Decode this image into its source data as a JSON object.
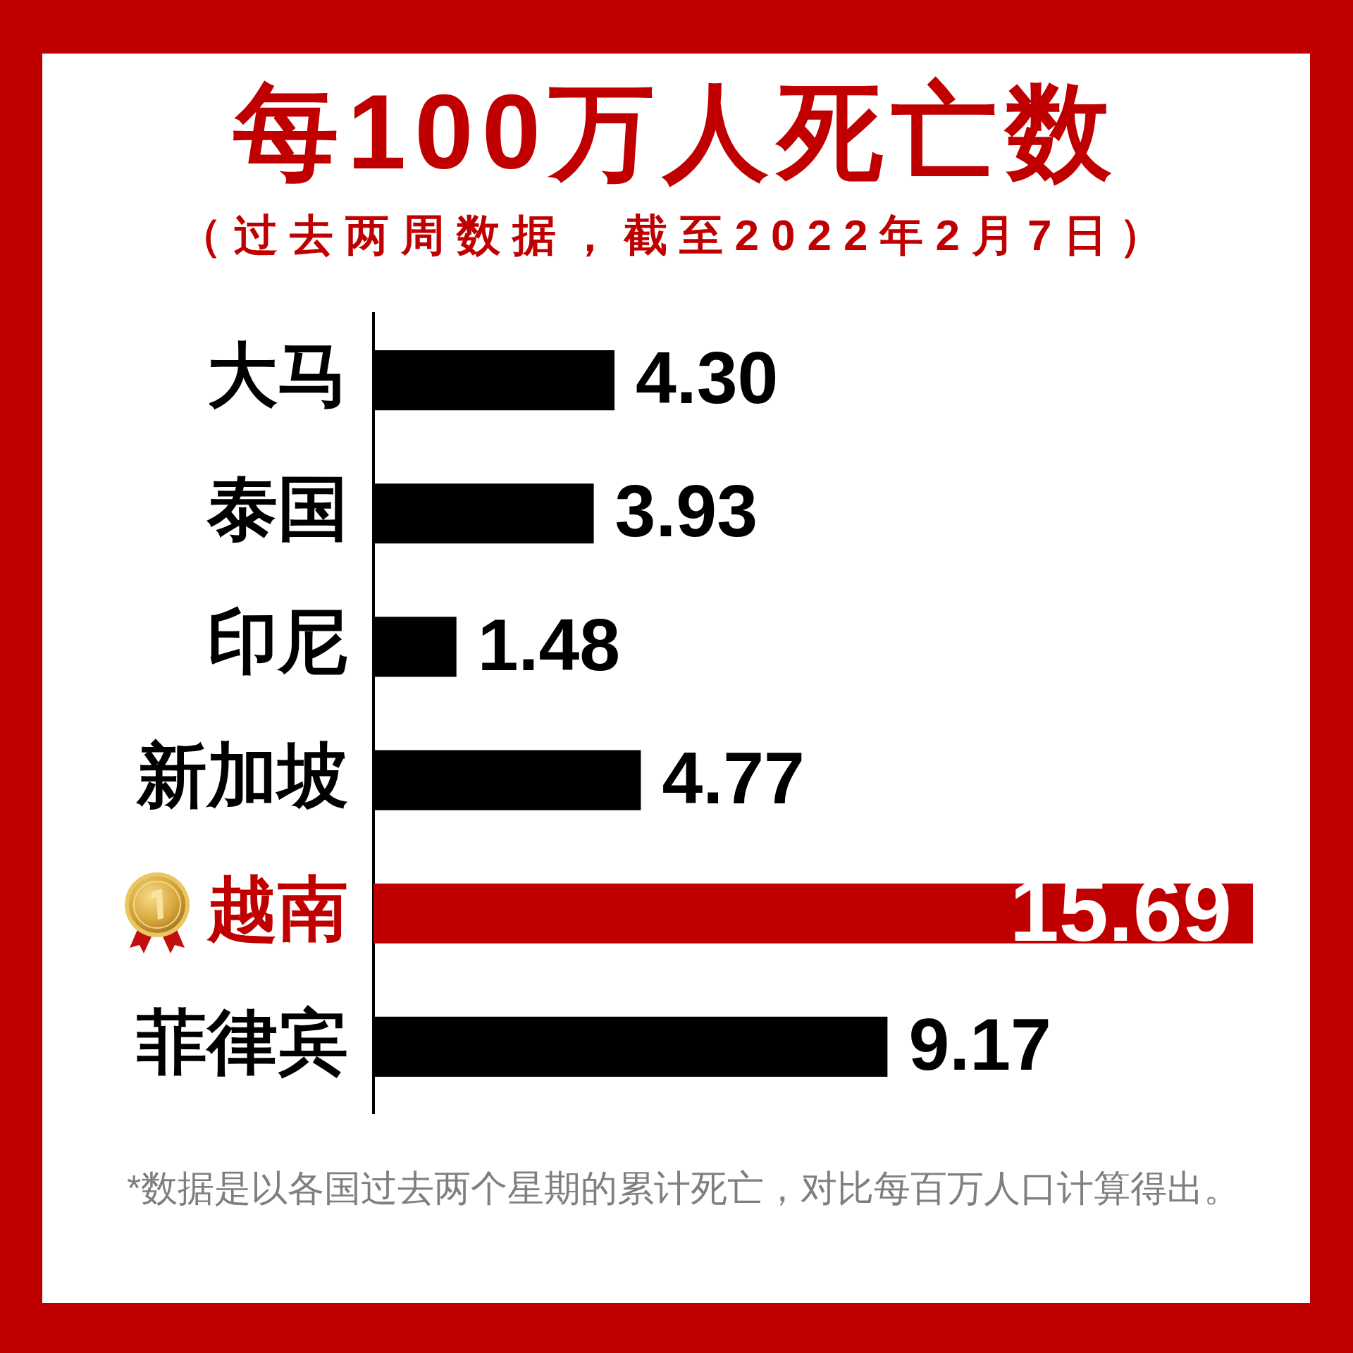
{
  "chart_data": {
    "type": "bar",
    "orientation": "horizontal",
    "title": "每100万人死亡数",
    "subtitle": "（过去两周数据，截至2022年2月7日）",
    "categories": [
      "大马",
      "泰国",
      "印尼",
      "新加坡",
      "越南",
      "菲律宾"
    ],
    "values": [
      4.3,
      3.93,
      1.48,
      4.77,
      15.69,
      9.17
    ],
    "value_labels": [
      "4.30",
      "3.93",
      "1.48",
      "4.77",
      "15.69",
      "9.17"
    ],
    "colors": [
      "#000000",
      "#000000",
      "#000000",
      "#000000",
      "#c00000",
      "#000000"
    ],
    "grid": false,
    "legend": false,
    "tick_labels": "y",
    "annotations": [
      "*数据是以各国过去两个星期的累计死亡，对比每百万人口计算得出。"
    ]
  }
}
